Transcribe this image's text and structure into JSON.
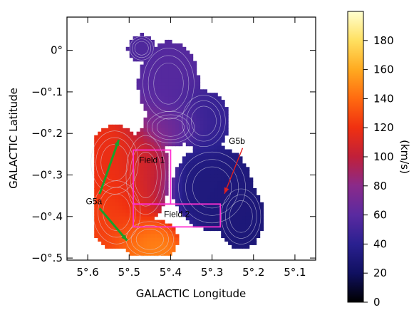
{
  "chart_data": {
    "type": "heatmap",
    "xlabel": "GALACTIC Longitude",
    "ylabel": "GALACTIC Latitude",
    "xlim": [
      5.65,
      5.05
    ],
    "ylim": [
      -0.505,
      0.08
    ],
    "x_ticks": [
      {
        "value": 5.6,
        "label": "5°.6"
      },
      {
        "value": 5.5,
        "label": "5°.5"
      },
      {
        "value": 5.4,
        "label": "5°.4"
      },
      {
        "value": 5.3,
        "label": "5°.3"
      },
      {
        "value": 5.2,
        "label": "5°.2"
      },
      {
        "value": 5.1,
        "label": "5°.1"
      }
    ],
    "y_ticks": [
      {
        "value": 0.0,
        "label": "0°"
      },
      {
        "value": -0.1,
        "label": "−0°.1"
      },
      {
        "value": -0.2,
        "label": "−0°.2"
      },
      {
        "value": -0.3,
        "label": "−0°.3"
      },
      {
        "value": -0.4,
        "label": "−0°.4"
      },
      {
        "value": -0.5,
        "label": "−0°.5"
      }
    ],
    "colorbar": {
      "label": "(km/s)",
      "min": 0,
      "max": 200,
      "ticks": [
        {
          "value": 0,
          "label": "0"
        },
        {
          "value": 20,
          "label": "20"
        },
        {
          "value": 40,
          "label": "40"
        },
        {
          "value": 60,
          "label": "60"
        },
        {
          "value": 80,
          "label": "80"
        },
        {
          "value": 100,
          "label": "100"
        },
        {
          "value": 120,
          "label": "120"
        },
        {
          "value": 140,
          "label": "140"
        },
        {
          "value": 160,
          "label": "160"
        },
        {
          "value": 180,
          "label": "180"
        }
      ],
      "colormap": [
        "#000000",
        "#101060",
        "#2a2090",
        "#5a2aa0",
        "#8a2a8a",
        "#c0203a",
        "#f03010",
        "#ff6a10",
        "#ffaa20",
        "#ffe060",
        "#ffffd0"
      ]
    },
    "regions": [
      {
        "label": "Field 1",
        "l_range": [
          5.49,
          5.4
        ],
        "b_range": [
          -0.37,
          -0.24
        ],
        "color": "#ff30d0"
      },
      {
        "label": "Field 2",
        "l_range": [
          5.49,
          5.28
        ],
        "b_range": [
          -0.425,
          -0.37
        ],
        "color": "#ff30d0"
      }
    ],
    "annotations": [
      {
        "text": "G5a",
        "at": [
          5.585,
          -0.37
        ],
        "arrows_to": [
          [
            5.525,
            -0.215
          ],
          [
            5.505,
            -0.458
          ]
        ],
        "color": "#1aa02a"
      },
      {
        "text": "G5b",
        "at": [
          5.24,
          -0.225
        ],
        "arrows_to": [
          [
            5.27,
            -0.345
          ]
        ],
        "color": "#e02020"
      }
    ],
    "velocity_blobs": [
      {
        "l": 5.405,
        "b": -0.08,
        "rl": 0.065,
        "rb": 0.09,
        "v": 58
      },
      {
        "l": 5.47,
        "b": 0.005,
        "rl": 0.03,
        "rb": 0.03,
        "v": 55
      },
      {
        "l": 5.32,
        "b": -0.17,
        "rl": 0.055,
        "rb": 0.065,
        "v": 45
      },
      {
        "l": 5.535,
        "b": -0.27,
        "rl": 0.06,
        "rb": 0.08,
        "v": 118
      },
      {
        "l": 5.53,
        "b": -0.39,
        "rl": 0.06,
        "rb": 0.08,
        "v": 125
      },
      {
        "l": 5.46,
        "b": -0.3,
        "rl": 0.05,
        "rb": 0.1,
        "v": 105
      },
      {
        "l": 5.45,
        "b": -0.455,
        "rl": 0.06,
        "rb": 0.045,
        "v": 150
      },
      {
        "l": 5.3,
        "b": -0.33,
        "rl": 0.085,
        "rb": 0.09,
        "v": 32
      },
      {
        "l": 5.23,
        "b": -0.4,
        "rl": 0.05,
        "rb": 0.07,
        "v": 30
      },
      {
        "l": 5.4,
        "b": -0.185,
        "rl": 0.06,
        "rb": 0.04,
        "v": 72
      }
    ]
  }
}
